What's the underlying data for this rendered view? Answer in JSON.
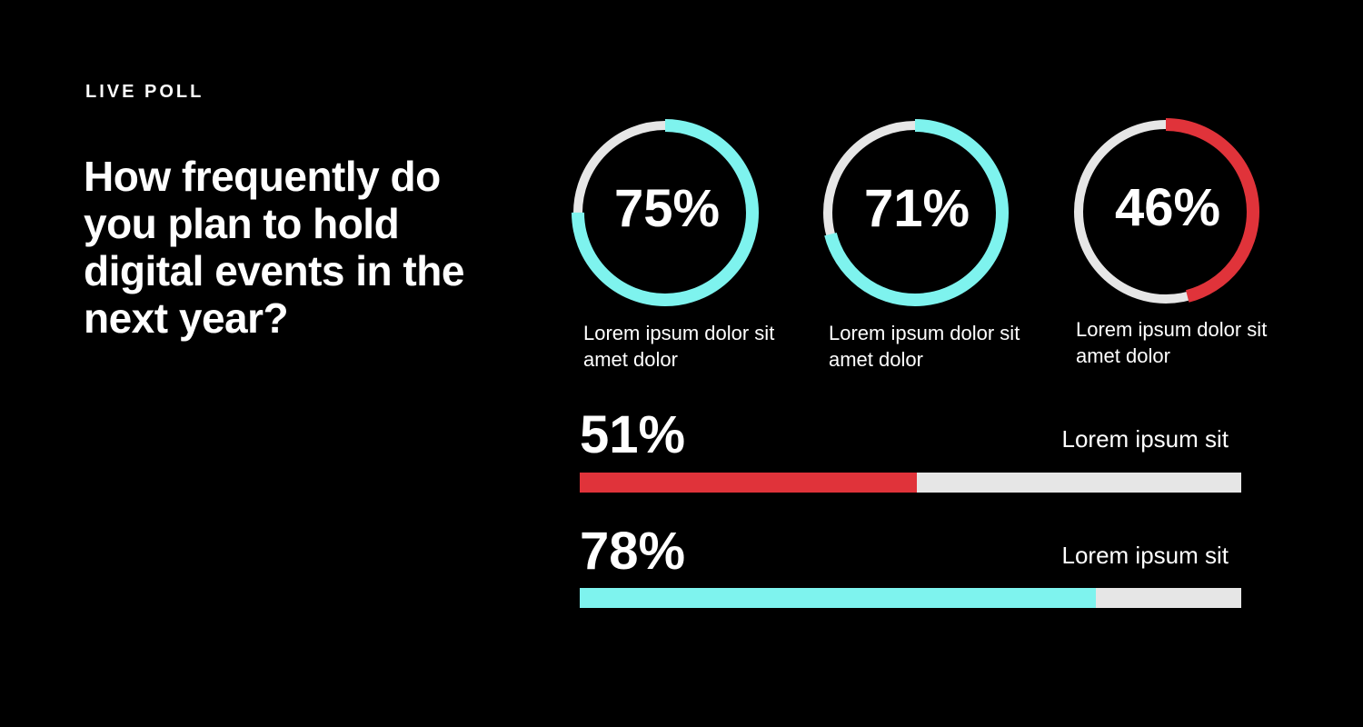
{
  "header": {
    "eyebrow": "LIVE POLL",
    "question": "How frequently do you plan to hold digital events in the next year?"
  },
  "chart_data": [
    {
      "type": "pie",
      "style": "donut-progress",
      "rings": [
        {
          "value": 75,
          "display": "75%",
          "caption": "Lorem ipsum dolor sit amet dolor",
          "color": "#7ef3ee"
        },
        {
          "value": 71,
          "display": "71%",
          "caption": "Lorem ipsum dolor sit amet dolor",
          "color": "#7ef3ee"
        },
        {
          "value": 46,
          "display": "46%",
          "caption": "Lorem ipsum dolor sit amet dolor",
          "color": "#e0333a"
        }
      ],
      "track_color": "#e6e6e6"
    },
    {
      "type": "bar",
      "orientation": "horizontal",
      "bars": [
        {
          "value": 51,
          "display": "51%",
          "label": "Lorem ipsum sit",
          "color": "#e0333a"
        },
        {
          "value": 78,
          "display": "78%",
          "label": "Lorem ipsum sit",
          "color": "#7ef3ee"
        }
      ],
      "xlim": [
        0,
        100
      ],
      "track_color": "#e6e6e6"
    }
  ]
}
